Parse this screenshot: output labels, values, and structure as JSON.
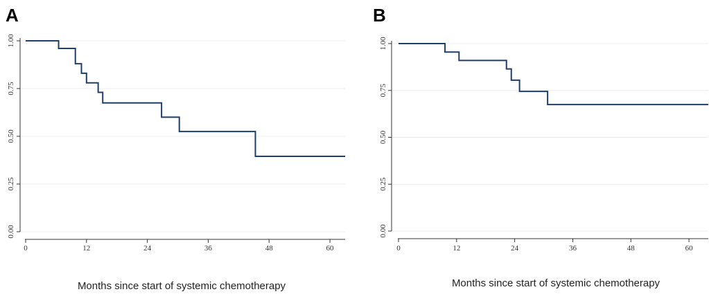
{
  "chart_data": [
    {
      "type": "line",
      "panel": "A",
      "title": "",
      "xlabel": "Months since start of systemic chemotherapy",
      "ylabel": "",
      "xlim": [
        0,
        63
      ],
      "ylim": [
        0,
        1
      ],
      "xticks": [
        0,
        12,
        24,
        36,
        48,
        60
      ],
      "yticks": [
        0,
        0.25,
        0.5,
        0.75,
        1
      ],
      "ytick_labels": [
        "0.00",
        "0.25",
        "0.50",
        "0.75",
        "1.00"
      ],
      "grid": true,
      "color": "#1f3f6b",
      "series": [
        {
          "x": [
            0,
            6.5,
            9.8,
            11.0,
            12.0,
            14.3,
            15.2,
            26.8,
            30.3,
            45.3,
            63
          ],
          "values": [
            1.0,
            0.96,
            0.88,
            0.83,
            0.78,
            0.73,
            0.675,
            0.6,
            0.525,
            0.395,
            0.395
          ]
        }
      ]
    },
    {
      "type": "line",
      "panel": "B",
      "title": "",
      "xlabel": "Months since start of systemic chemotherapy",
      "ylabel": "",
      "xlim": [
        0,
        64
      ],
      "ylim": [
        0,
        1
      ],
      "xticks": [
        0,
        12,
        24,
        36,
        48,
        60
      ],
      "yticks": [
        0,
        0.25,
        0.5,
        0.75,
        1
      ],
      "ytick_labels": [
        "0.00",
        "0.25",
        "0.50",
        "0.75",
        "1.00"
      ],
      "grid": true,
      "color": "#1f3f6b",
      "series": [
        {
          "x": [
            0,
            9.6,
            12.5,
            22.3,
            23.3,
            25.0,
            30.8,
            64
          ],
          "values": [
            1.0,
            0.955,
            0.91,
            0.865,
            0.805,
            0.745,
            0.675,
            0.675
          ]
        }
      ]
    }
  ]
}
